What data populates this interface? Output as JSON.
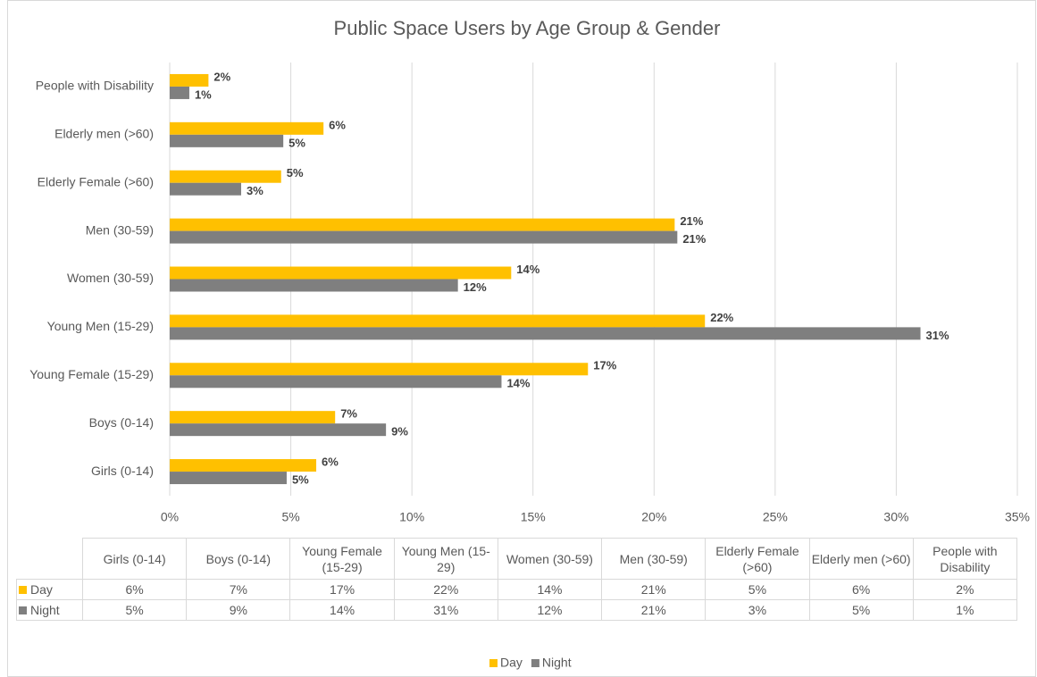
{
  "chart_data": {
    "type": "bar",
    "orientation": "horizontal",
    "title": "Public Space Users by Age Group & Gender",
    "categories": [
      "Girls (0-14)",
      "Boys (0-14)",
      "Young Female (15-29)",
      "Young Men (15-29)",
      "Women (30-59)",
      "Men (30-59)",
      "Elderly Female (>60)",
      "Elderly men (>60)",
      "People with Disability"
    ],
    "series": [
      {
        "name": "Day",
        "color": "#ffc000",
        "values": [
          6.05,
          6.83,
          17.27,
          22.1,
          14.1,
          20.85,
          4.6,
          6.35,
          1.6
        ],
        "value_labels": [
          "6%",
          "7%",
          "17%",
          "22%",
          "14%",
          "21%",
          "5%",
          "6%",
          "2%"
        ]
      },
      {
        "name": "Night",
        "color": "#7f7f7f",
        "values": [
          4.83,
          8.93,
          13.7,
          31.0,
          11.9,
          20.96,
          2.95,
          4.69,
          0.81
        ],
        "value_labels": [
          "5%",
          "9%",
          "14%",
          "31%",
          "12%",
          "21%",
          "3%",
          "5%",
          "1%"
        ]
      }
    ],
    "xlim": [
      0,
      35
    ],
    "xticks": [
      {
        "value": 0,
        "label": "0%"
      },
      {
        "value": 5,
        "label": "5%"
      },
      {
        "value": 10,
        "label": "10%"
      },
      {
        "value": 15,
        "label": "15%"
      },
      {
        "value": 20,
        "label": "20%"
      },
      {
        "value": 25,
        "label": "25%"
      },
      {
        "value": 30,
        "label": "30%"
      },
      {
        "value": 35,
        "label": "35%"
      }
    ],
    "grid": true,
    "legend": "bottom",
    "data_table": true
  }
}
